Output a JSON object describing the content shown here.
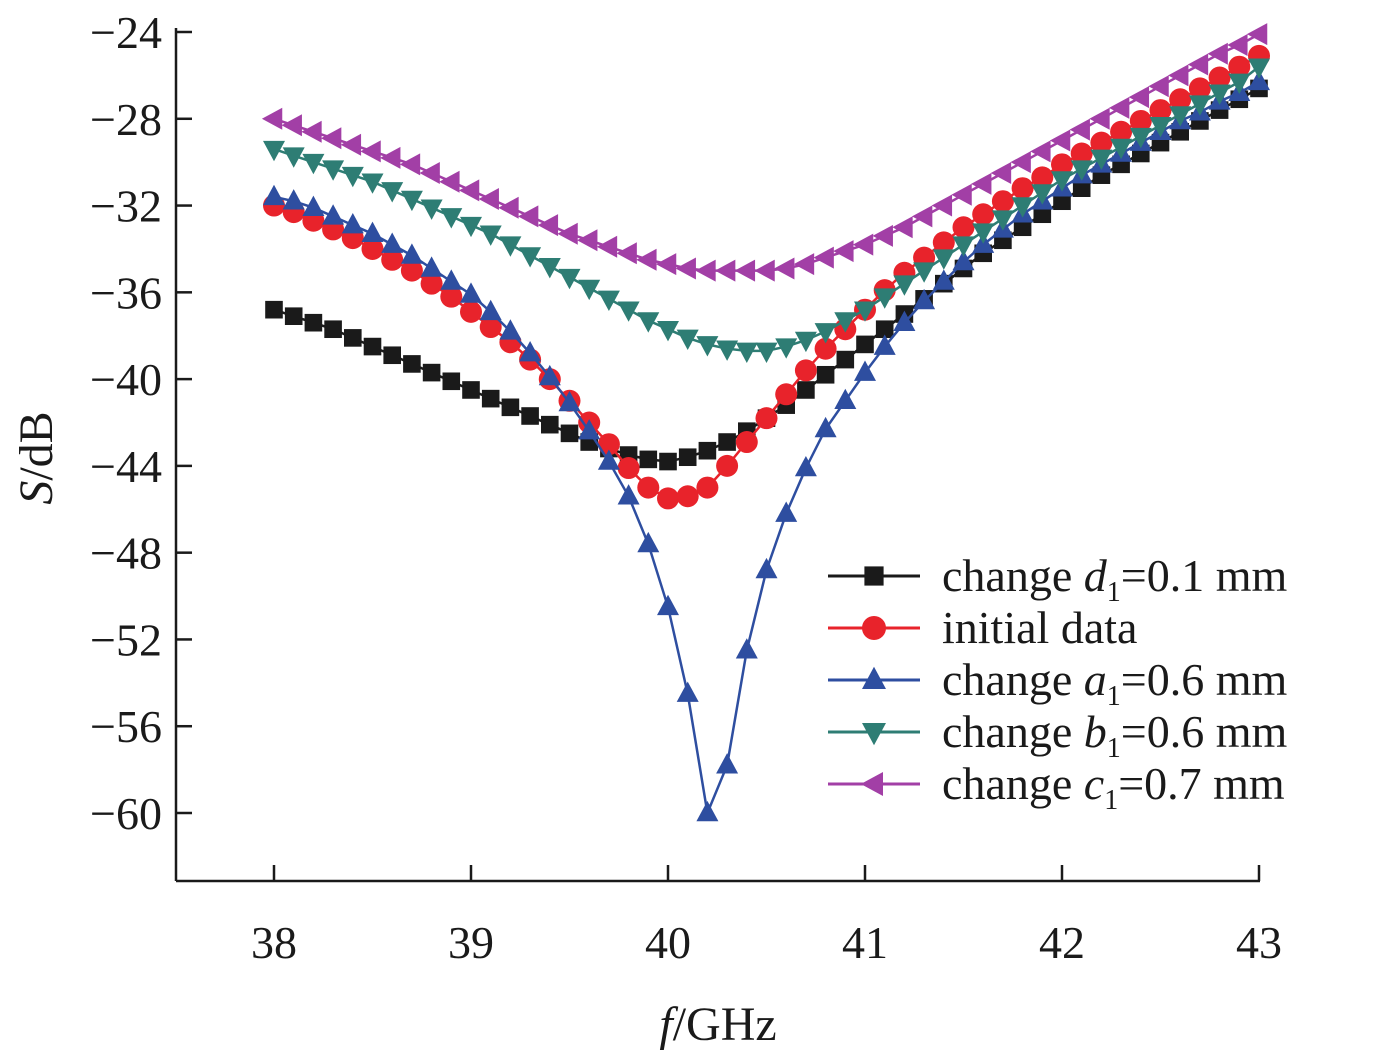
{
  "chart_data": {
    "type": "line",
    "xlabel": {
      "italic": "f",
      "rest": "/GHz"
    },
    "ylabel": {
      "italic": "S",
      "rest": "/dB"
    },
    "xlim": [
      37.5,
      43
    ],
    "ylim": [
      -63,
      -24
    ],
    "x_ticks": [
      38,
      39,
      40,
      41,
      42,
      43
    ],
    "y_ticks": [
      -24,
      -28,
      -32,
      -36,
      -40,
      -44,
      -48,
      -52,
      -56,
      -60
    ],
    "x_tick_labels": [
      "38",
      "39",
      "40",
      "41",
      "42",
      "43"
    ],
    "y_tick_labels": [
      "−24",
      "−28",
      "−32",
      "−36",
      "−40",
      "−44",
      "−48",
      "−52",
      "−56",
      "−60"
    ],
    "grid": false,
    "legend_position": "bottom-right",
    "series": [
      {
        "key": "d1",
        "name": "change d1=0.1 mm",
        "legend": {
          "pre": "change ",
          "var": "d",
          "sub": "1",
          "post": "=0.1 mm"
        },
        "color": "#1a1a1a",
        "marker": "square",
        "x": [
          38.0,
          38.1,
          38.2,
          38.3,
          38.4,
          38.5,
          38.6,
          38.7,
          38.8,
          38.9,
          39.0,
          39.1,
          39.2,
          39.3,
          39.4,
          39.5,
          39.6,
          39.7,
          39.8,
          39.9,
          40.0,
          40.1,
          40.2,
          40.3,
          40.4,
          40.5,
          40.6,
          40.7,
          40.8,
          40.9,
          41.0,
          41.1,
          41.2,
          41.3,
          41.4,
          41.5,
          41.6,
          41.7,
          41.8,
          41.9,
          42.0,
          42.1,
          42.2,
          42.3,
          42.4,
          42.5,
          42.6,
          42.7,
          42.8,
          42.9,
          43.0
        ],
        "y": [
          -36.8,
          -37.1,
          -37.4,
          -37.7,
          -38.1,
          -38.5,
          -38.9,
          -39.3,
          -39.7,
          -40.1,
          -40.5,
          -40.9,
          -41.3,
          -41.7,
          -42.1,
          -42.5,
          -42.9,
          -43.2,
          -43.5,
          -43.7,
          -43.8,
          -43.6,
          -43.3,
          -42.9,
          -42.4,
          -41.8,
          -41.2,
          -40.5,
          -39.8,
          -39.1,
          -38.4,
          -37.7,
          -37.0,
          -36.3,
          -35.6,
          -34.9,
          -34.2,
          -33.6,
          -33.0,
          -32.4,
          -31.8,
          -31.2,
          -30.6,
          -30.1,
          -29.6,
          -29.1,
          -28.6,
          -28.1,
          -27.6,
          -27.1,
          -26.6
        ]
      },
      {
        "key": "initial",
        "name": "initial data",
        "legend": {
          "pre": "initial data",
          "var": "",
          "sub": "",
          "post": ""
        },
        "color": "#e8232b",
        "marker": "circle",
        "x": [
          38.0,
          38.1,
          38.2,
          38.3,
          38.4,
          38.5,
          38.6,
          38.7,
          38.8,
          38.9,
          39.0,
          39.1,
          39.2,
          39.3,
          39.4,
          39.5,
          39.6,
          39.7,
          39.8,
          39.9,
          40.0,
          40.1,
          40.2,
          40.3,
          40.4,
          40.5,
          40.6,
          40.7,
          40.8,
          40.9,
          41.0,
          41.1,
          41.2,
          41.3,
          41.4,
          41.5,
          41.6,
          41.7,
          41.8,
          41.9,
          42.0,
          42.1,
          42.2,
          42.3,
          42.4,
          42.5,
          42.6,
          42.7,
          42.8,
          42.9,
          43.0
        ],
        "y": [
          -32.0,
          -32.3,
          -32.7,
          -33.1,
          -33.5,
          -34.0,
          -34.5,
          -35.0,
          -35.6,
          -36.2,
          -36.9,
          -37.6,
          -38.3,
          -39.1,
          -40.0,
          -41.0,
          -42.0,
          -43.0,
          -44.1,
          -45.0,
          -45.5,
          -45.4,
          -45.0,
          -44.0,
          -42.9,
          -41.8,
          -40.7,
          -39.6,
          -38.6,
          -37.7,
          -36.8,
          -35.9,
          -35.1,
          -34.4,
          -33.7,
          -33.0,
          -32.4,
          -31.8,
          -31.2,
          -30.7,
          -30.1,
          -29.6,
          -29.1,
          -28.6,
          -28.1,
          -27.6,
          -27.1,
          -26.6,
          -26.1,
          -25.6,
          -25.1
        ]
      },
      {
        "key": "a1",
        "name": "change a1=0.6 mm",
        "legend": {
          "pre": "change ",
          "var": "a",
          "sub": "1",
          "post": "=0.6 mm"
        },
        "color": "#2e4ea0",
        "marker": "triangle-up",
        "x": [
          38.0,
          38.1,
          38.2,
          38.3,
          38.4,
          38.5,
          38.6,
          38.7,
          38.8,
          38.9,
          39.0,
          39.1,
          39.2,
          39.3,
          39.4,
          39.5,
          39.6,
          39.7,
          39.8,
          39.9,
          40.0,
          40.1,
          40.2,
          40.3,
          40.4,
          40.5,
          40.6,
          40.7,
          40.8,
          40.9,
          41.0,
          41.1,
          41.2,
          41.3,
          41.4,
          41.5,
          41.6,
          41.7,
          41.8,
          41.9,
          42.0,
          42.1,
          42.2,
          42.3,
          42.4,
          42.5,
          42.6,
          42.7,
          42.8,
          42.9,
          43.0
        ],
        "y": [
          -31.6,
          -31.8,
          -32.1,
          -32.5,
          -32.9,
          -33.3,
          -33.8,
          -34.3,
          -34.9,
          -35.5,
          -36.1,
          -36.9,
          -37.8,
          -38.8,
          -39.9,
          -41.1,
          -42.4,
          -43.8,
          -45.4,
          -47.6,
          -50.5,
          -54.5,
          -60.0,
          -57.8,
          -52.5,
          -48.8,
          -46.2,
          -44.1,
          -42.3,
          -41.0,
          -39.7,
          -38.5,
          -37.4,
          -36.4,
          -35.5,
          -34.6,
          -33.8,
          -33.1,
          -32.4,
          -31.8,
          -31.2,
          -30.6,
          -30.1,
          -29.6,
          -29.1,
          -28.6,
          -28.1,
          -27.7,
          -27.2,
          -26.8,
          -26.3
        ],
        "x_override": [
          38.0,
          38.1,
          38.2,
          38.3,
          38.4,
          38.5,
          38.6,
          38.7,
          38.8,
          38.9,
          39.0,
          39.1,
          39.2,
          39.3,
          39.4,
          39.5,
          39.6,
          39.7,
          39.8,
          39.9,
          40.0,
          40.1,
          40.2,
          40.3,
          40.4,
          40.5,
          40.6,
          40.7,
          40.8,
          40.9,
          41.0,
          41.1,
          41.2,
          41.3,
          41.4,
          41.5,
          41.6,
          41.7,
          41.8,
          41.9,
          42.0,
          42.1,
          42.2,
          42.3,
          42.4,
          42.5,
          42.6,
          42.7,
          42.8,
          42.9,
          43.0
        ]
      },
      {
        "key": "b1",
        "name": "change b1=0.6 mm",
        "legend": {
          "pre": "change ",
          "var": "b",
          "sub": "1",
          "post": "=0.6 mm"
        },
        "color": "#2e7d74",
        "marker": "triangle-down",
        "x": [
          38.0,
          38.1,
          38.2,
          38.3,
          38.4,
          38.5,
          38.6,
          38.7,
          38.8,
          38.9,
          39.0,
          39.1,
          39.2,
          39.3,
          39.4,
          39.5,
          39.6,
          39.7,
          39.8,
          39.9,
          40.0,
          40.1,
          40.2,
          40.3,
          40.4,
          40.5,
          40.6,
          40.7,
          40.8,
          40.9,
          41.0,
          41.1,
          41.2,
          41.3,
          41.4,
          41.5,
          41.6,
          41.7,
          41.8,
          41.9,
          42.0,
          42.1,
          42.2,
          42.3,
          42.4,
          42.5,
          42.6,
          42.7,
          42.8,
          42.9,
          43.0
        ],
        "y": [
          -29.4,
          -29.7,
          -30.0,
          -30.3,
          -30.6,
          -30.9,
          -31.3,
          -31.7,
          -32.1,
          -32.5,
          -32.9,
          -33.3,
          -33.8,
          -34.3,
          -34.8,
          -35.3,
          -35.8,
          -36.3,
          -36.8,
          -37.3,
          -37.7,
          -38.1,
          -38.4,
          -38.6,
          -38.7,
          -38.7,
          -38.5,
          -38.2,
          -37.8,
          -37.3,
          -36.8,
          -36.2,
          -35.6,
          -35.0,
          -34.4,
          -33.8,
          -33.2,
          -32.6,
          -32.0,
          -31.4,
          -30.8,
          -30.3,
          -29.8,
          -29.3,
          -28.8,
          -28.3,
          -27.8,
          -27.3,
          -26.8,
          -26.3,
          -25.6
        ]
      },
      {
        "key": "c1",
        "name": "change c1=0.7 mm",
        "legend": {
          "pre": "change ",
          "var": "c",
          "sub": "1",
          "post": "=0.7 mm"
        },
        "color": "#a23fa6",
        "marker": "triangle-left",
        "x": [
          38.0,
          38.1,
          38.2,
          38.3,
          38.4,
          38.5,
          38.6,
          38.7,
          38.8,
          38.9,
          39.0,
          39.1,
          39.2,
          39.3,
          39.4,
          39.5,
          39.6,
          39.7,
          39.8,
          39.9,
          40.0,
          40.1,
          40.2,
          40.3,
          40.4,
          40.5,
          40.6,
          40.7,
          40.8,
          40.9,
          41.0,
          41.1,
          41.2,
          41.3,
          41.4,
          41.5,
          41.6,
          41.7,
          41.8,
          41.9,
          42.0,
          42.1,
          42.2,
          42.3,
          42.4,
          42.5,
          42.6,
          42.7,
          42.8,
          42.9,
          43.0
        ],
        "y": [
          -28.0,
          -28.3,
          -28.6,
          -28.9,
          -29.2,
          -29.5,
          -29.8,
          -30.1,
          -30.5,
          -30.9,
          -31.3,
          -31.7,
          -32.1,
          -32.5,
          -32.9,
          -33.3,
          -33.6,
          -33.9,
          -34.2,
          -34.5,
          -34.7,
          -34.9,
          -35.0,
          -35.0,
          -35.0,
          -35.0,
          -34.9,
          -34.7,
          -34.4,
          -34.1,
          -33.8,
          -33.4,
          -33.0,
          -32.5,
          -32.0,
          -31.5,
          -31.0,
          -30.5,
          -30.0,
          -29.5,
          -29.0,
          -28.5,
          -28.0,
          -27.5,
          -27.0,
          -26.5,
          -26.0,
          -25.5,
          -25.0,
          -24.6,
          -24.1
        ]
      }
    ]
  }
}
